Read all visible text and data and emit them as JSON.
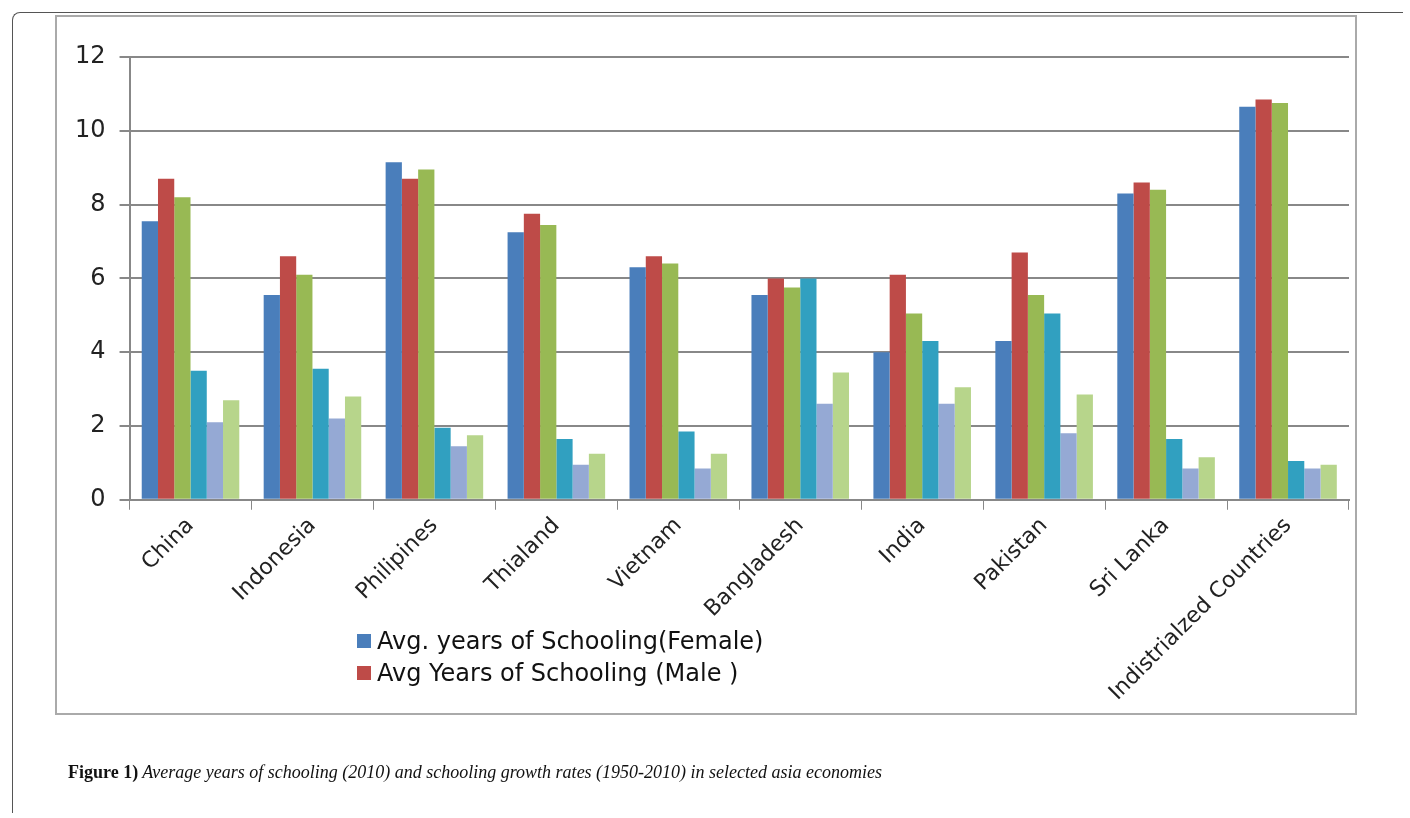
{
  "chart_data": {
    "type": "bar",
    "categories": [
      "China",
      "Indonesia",
      "Philipines",
      "Thialand",
      "Vietnam",
      "Bangladesh",
      "India",
      "Pakistan",
      "Sri Lanka",
      "Indistrialzed Countries"
    ],
    "series": [
      {
        "name": "Avg. years of Schooling(Female)",
        "color": "#4a7ebb",
        "values": [
          7.55,
          5.55,
          9.15,
          7.25,
          6.3,
          5.55,
          4.0,
          4.3,
          8.3,
          10.65
        ]
      },
      {
        "name": "Avg Years of Schooling (Male )",
        "color": "#be4b48",
        "values": [
          8.7,
          6.6,
          8.7,
          7.75,
          6.6,
          6.0,
          6.1,
          6.7,
          8.6,
          10.85
        ]
      },
      {
        "color": "#98b954",
        "values": [
          8.2,
          6.1,
          8.95,
          7.45,
          6.4,
          5.75,
          5.05,
          5.55,
          8.4,
          10.75
        ]
      },
      {
        "color": "#31a0c0",
        "values": [
          3.5,
          3.55,
          1.95,
          1.65,
          1.85,
          6.0,
          4.3,
          5.05,
          1.65,
          1.05
        ]
      },
      {
        "color": "#95a9d4",
        "values": [
          2.1,
          2.2,
          1.45,
          0.95,
          0.85,
          2.6,
          2.6,
          1.8,
          0.85,
          0.85
        ]
      },
      {
        "color": "#b7d58b",
        "values": [
          2.7,
          2.8,
          1.75,
          1.25,
          1.25,
          3.45,
          3.05,
          2.85,
          1.15,
          0.95
        ]
      }
    ],
    "ylim": [
      0,
      12
    ],
    "yticks": [
      0,
      2,
      4,
      6,
      8,
      10,
      12
    ],
    "grid": "y",
    "legend": "bottom",
    "annotations": [
      "Figure 1) Average years of schooling (2010) and schooling growth rates (1950-2010) in selected asia economies"
    ]
  }
}
